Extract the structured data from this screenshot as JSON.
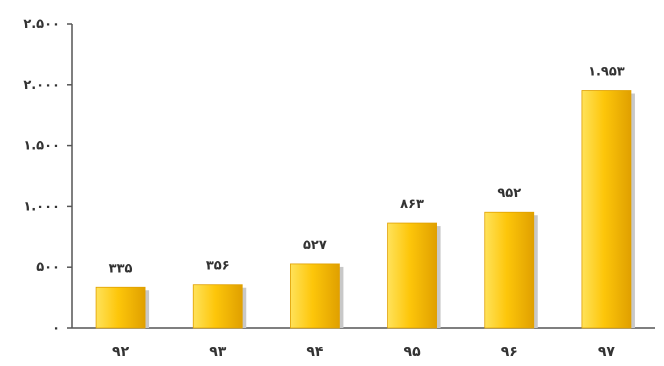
{
  "chart_data": {
    "type": "bar",
    "title": "",
    "xlabel": "",
    "ylabel": "",
    "categories": [
      "۹۲",
      "۹۳",
      "۹۴",
      "۹۵",
      "۹۶",
      "۹۷"
    ],
    "values": [
      335,
      356,
      527,
      863,
      952,
      1953
    ],
    "value_labels": [
      "۳۳۵",
      "۳۵۶",
      "۵۲۷",
      "۸۶۳",
      "۹۵۲",
      "۱.۹۵۳"
    ],
    "ylim": [
      0,
      2500
    ],
    "yticks": [
      0,
      500,
      1000,
      1500,
      2000,
      2500
    ],
    "ytick_labels": [
      "۰",
      "۵۰۰",
      "۱.۰۰۰",
      "۱.۵۰۰",
      "۲.۰۰۰",
      "۲.۵۰۰"
    ],
    "grid": false,
    "legend": "none",
    "colors": {
      "bar_light": "#FFE25A",
      "bar_mid": "#FDC60A",
      "bar_dark": "#E0A000",
      "bar_shadow": "#C8C8C8",
      "axis": "#555555",
      "text": "#333333"
    }
  }
}
